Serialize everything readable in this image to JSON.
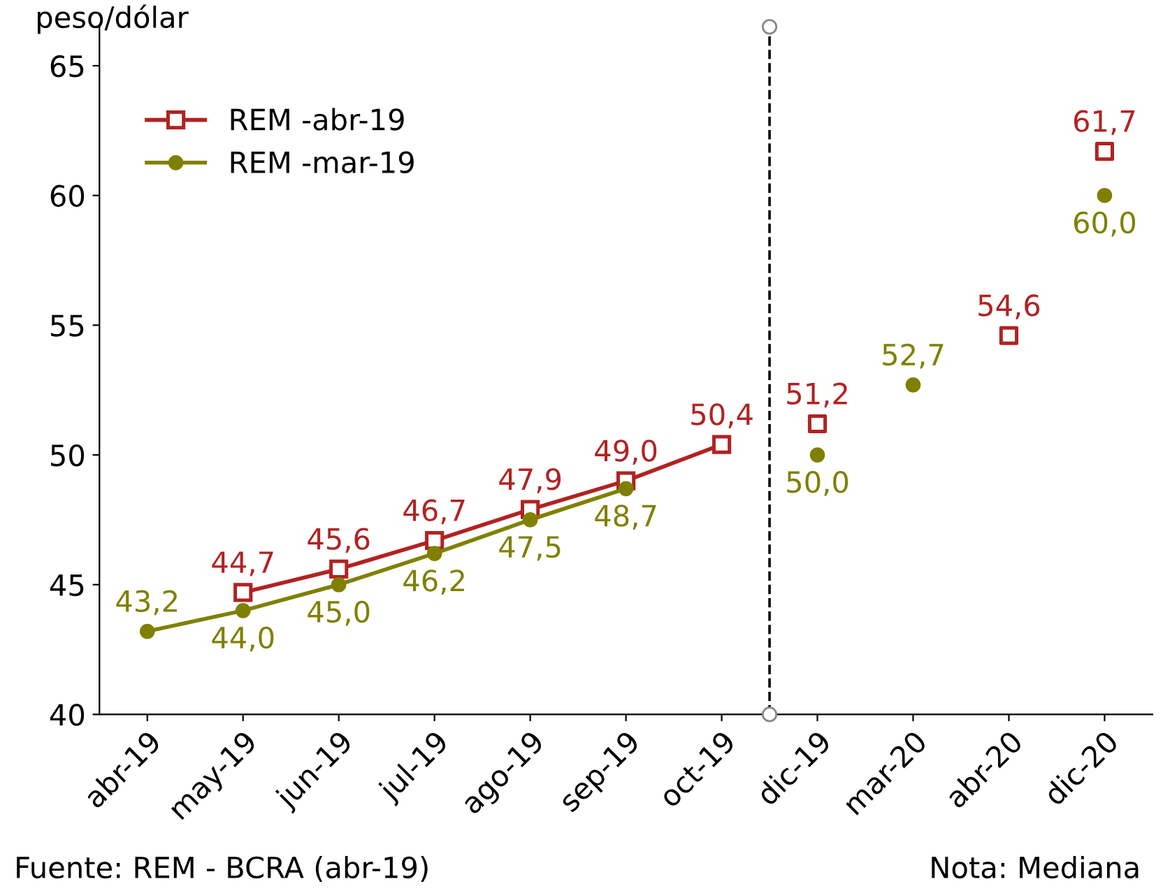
{
  "chart_data": {
    "type": "line",
    "ylabel": "peso/dólar",
    "categories": [
      "abr-19",
      "may-19",
      "jun-19",
      "jul-19",
      "ago-19",
      "sep-19",
      "oct-19",
      "dic-19",
      "mar-20",
      "abr-20",
      "dic-20"
    ],
    "series": [
      {
        "name": "REM -abr-19",
        "color": "#b22222",
        "marker": "square",
        "values": [
          null,
          44.7,
          45.6,
          46.7,
          47.9,
          49.0,
          50.4,
          null,
          null,
          null,
          null
        ],
        "value_labels": [
          null,
          "44,7",
          "45,6",
          "46,7",
          "47,9",
          "49,0",
          "50,4",
          null,
          null,
          null,
          null
        ]
      },
      {
        "name": "REM -mar-19",
        "color": "#808000",
        "marker": "circle",
        "values": [
          43.2,
          44.0,
          45.0,
          46.2,
          47.5,
          48.7,
          null,
          null,
          null,
          null,
          null
        ],
        "value_labels": [
          "43,2",
          "44,0",
          "45,0",
          "46,2",
          "47,5",
          "48,7",
          null,
          null,
          null,
          null,
          null
        ]
      },
      {
        "type": "scatter",
        "color": "#b22222",
        "marker": "square",
        "values": [
          null,
          null,
          null,
          null,
          null,
          null,
          null,
          51.2,
          null,
          54.6,
          61.7
        ],
        "value_labels": [
          null,
          null,
          null,
          null,
          null,
          null,
          null,
          "51,2",
          null,
          "54,6",
          "61,7"
        ]
      },
      {
        "type": "scatter",
        "color": "#808000",
        "marker": "circle",
        "values": [
          null,
          null,
          null,
          null,
          null,
          null,
          null,
          50.0,
          52.7,
          null,
          60.0
        ],
        "value_labels": [
          null,
          null,
          null,
          null,
          null,
          null,
          null,
          "50,0",
          "52,7",
          null,
          "60,0"
        ]
      }
    ],
    "ylim": [
      40,
      66.5
    ],
    "yticks": [
      40,
      45,
      50,
      55,
      60,
      65
    ],
    "grid": false,
    "legend": "top left",
    "annotations": [
      "Fuente: REM - BCRA (abr-19)",
      "Nota: Mediana"
    ]
  }
}
